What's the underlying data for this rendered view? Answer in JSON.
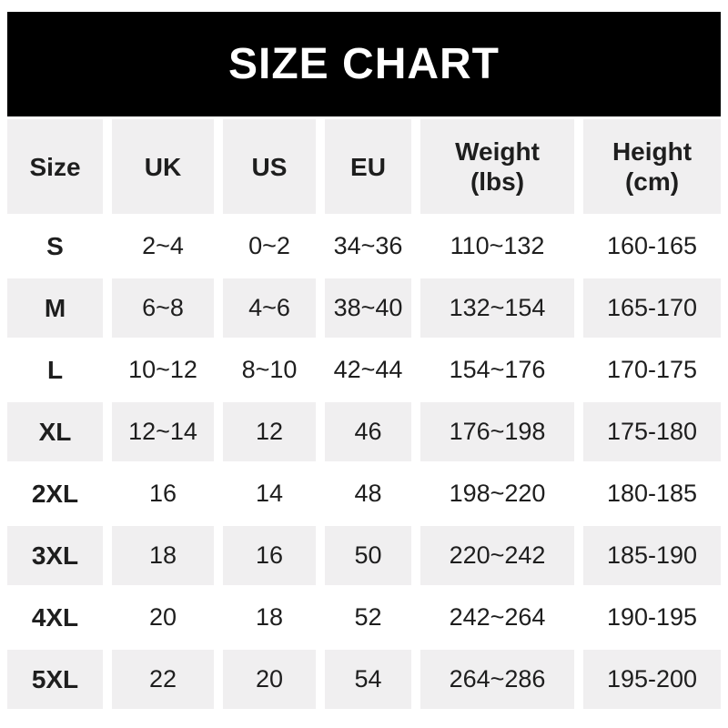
{
  "chart_data": {
    "type": "table",
    "title": "SIZE CHART",
    "columns": [
      "Size",
      "UK",
      "US",
      "EU",
      "Weight",
      "Height"
    ],
    "column_units": [
      "",
      "",
      "",
      "",
      "(lbs)",
      "(cm)"
    ],
    "rows": [
      [
        "S",
        "2~4",
        "0~2",
        "34~36",
        "110~132",
        "160-165"
      ],
      [
        "M",
        "6~8",
        "4~6",
        "38~40",
        "132~154",
        "165-170"
      ],
      [
        "L",
        "10~12",
        "8~10",
        "42~44",
        "154~176",
        "170-175"
      ],
      [
        "XL",
        "12~14",
        "12",
        "46",
        "176~198",
        "175-180"
      ],
      [
        "2XL",
        "16",
        "14",
        "48",
        "198~220",
        "180-185"
      ],
      [
        "3XL",
        "18",
        "16",
        "50",
        "220~242",
        "185-190"
      ],
      [
        "4XL",
        "20",
        "18",
        "52",
        "242~264",
        "190-195"
      ],
      [
        "5XL",
        "22",
        "20",
        "54",
        "264~286",
        "195-200"
      ]
    ],
    "layout": {
      "stripe_rows": [
        "header",
        "M",
        "XL",
        "3XL",
        "5XL"
      ],
      "grid": "off",
      "legend": "none"
    }
  },
  "colors": {
    "banner_bg": "#000000",
    "banner_text": "#ffffff",
    "stripe_bg": "#f0eff0",
    "text": "#1e1e1e"
  }
}
